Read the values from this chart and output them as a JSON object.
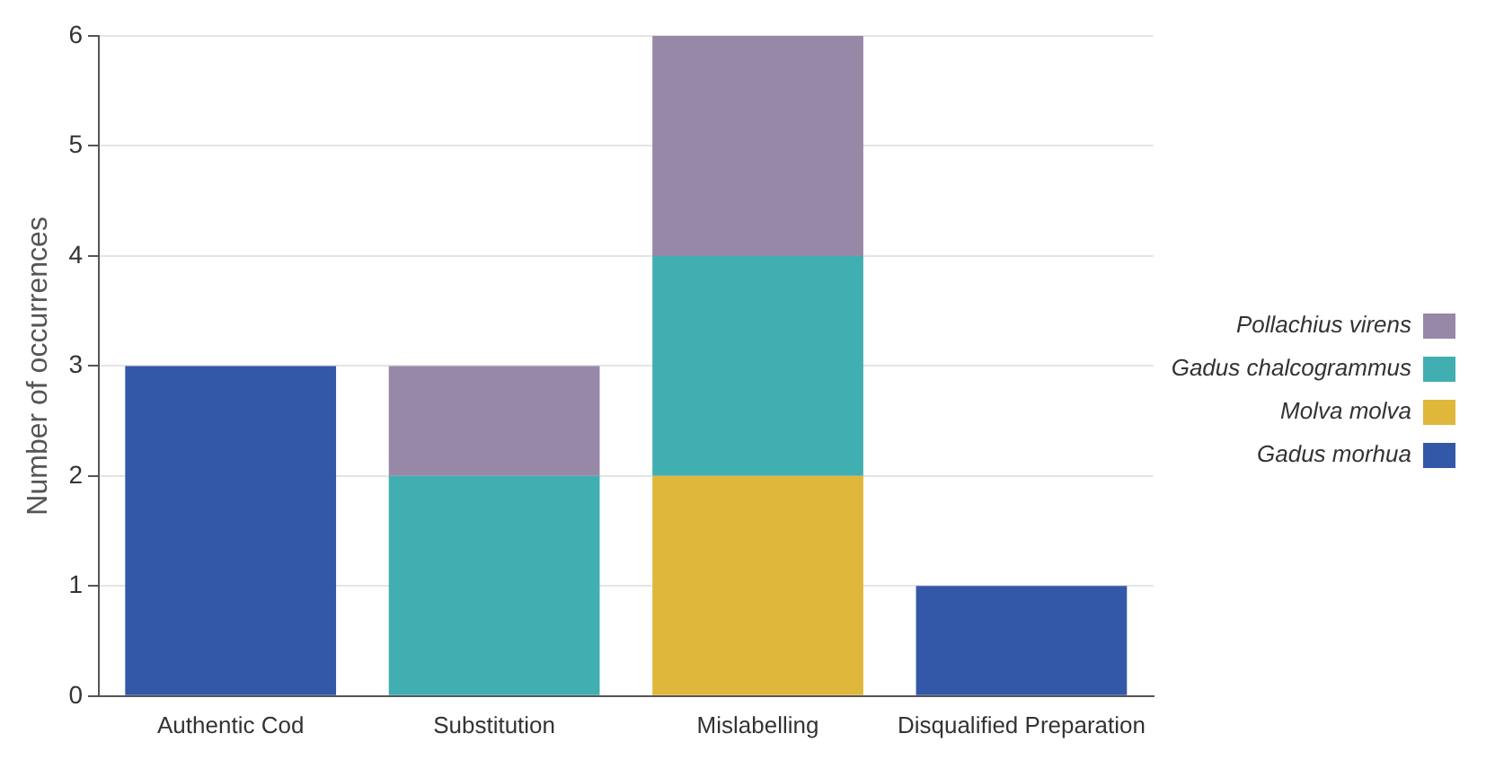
{
  "chart_data": {
    "type": "bar",
    "stacked": true,
    "ylabel": "Number of occurrences",
    "categories": [
      "Authentic Cod",
      "Substitution",
      "Mislabelling",
      "Disqualified Preparation"
    ],
    "series": [
      {
        "name": "Gadus morhua",
        "color": "#3358a8",
        "values": [
          3,
          0,
          0,
          1
        ]
      },
      {
        "name": "Molva molva",
        "color": "#dfb73a",
        "values": [
          0,
          0,
          2,
          0
        ]
      },
      {
        "name": "Gadus chalcogrammus",
        "color": "#41aeb2",
        "values": [
          0,
          2,
          2,
          0
        ]
      },
      {
        "name": "Pollachius virens",
        "color": "#9788a8",
        "values": [
          0,
          1,
          2,
          0
        ]
      }
    ],
    "ylim": [
      0,
      6
    ],
    "yticks": [
      0,
      1,
      2,
      3,
      4,
      5,
      6
    ],
    "grid": "y",
    "legend": "right"
  }
}
